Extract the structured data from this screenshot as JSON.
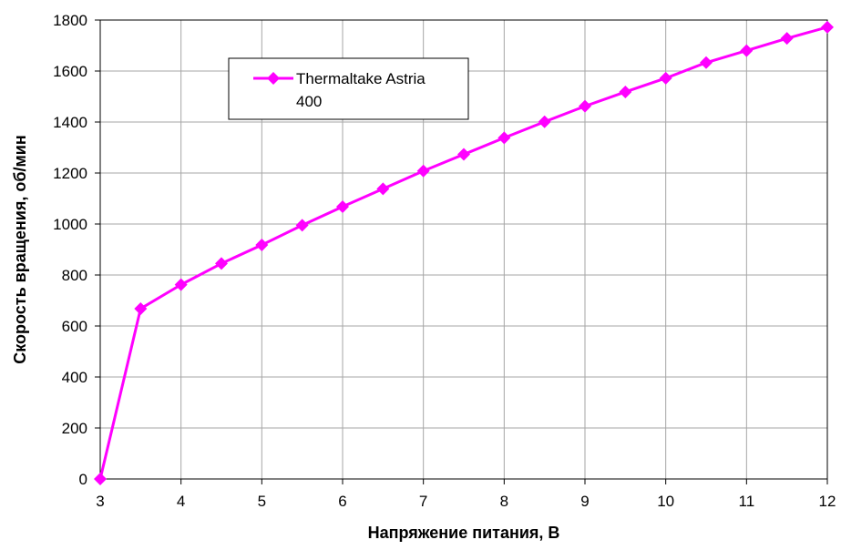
{
  "chart_data": {
    "type": "line",
    "title": "",
    "xlabel": "Напряжение питания, В",
    "ylabel": "Скорость вращения, об/мин",
    "xlim": [
      3,
      12
    ],
    "ylim": [
      0,
      1800
    ],
    "x_ticks": [
      3,
      4,
      5,
      6,
      7,
      8,
      9,
      10,
      11,
      12
    ],
    "y_ticks": [
      0,
      200,
      400,
      600,
      800,
      1000,
      1200,
      1400,
      1600,
      1800
    ],
    "grid": true,
    "legend_position": "top-left",
    "series": [
      {
        "name": "Thermaltake Astria 400",
        "legend_lines": [
          "Thermaltake Astria",
          "400"
        ],
        "color": "#ff00ff",
        "marker": "diamond",
        "x": [
          3,
          3.5,
          4,
          4.5,
          5,
          5.5,
          6,
          6.5,
          7,
          7.5,
          8,
          8.5,
          9,
          9.5,
          10,
          10.5,
          11,
          11.5,
          12
        ],
        "y": [
          0,
          668,
          762,
          845,
          918,
          995,
          1068,
          1138,
          1208,
          1273,
          1338,
          1401,
          1462,
          1518,
          1572,
          1633,
          1680,
          1728,
          1772
        ]
      }
    ]
  }
}
